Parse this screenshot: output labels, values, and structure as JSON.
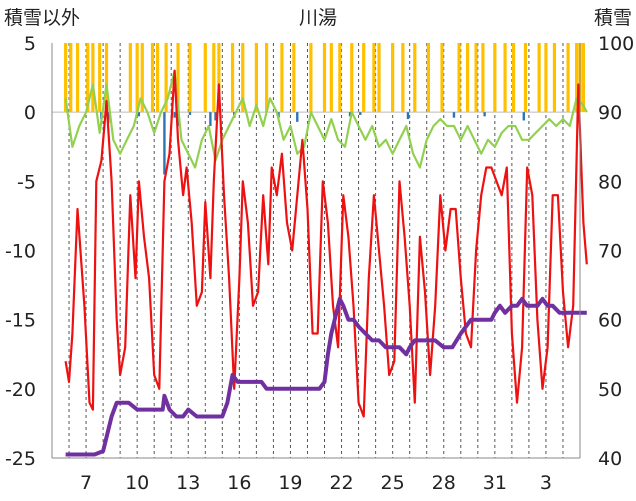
{
  "chart_data": {
    "type": "line",
    "title": "川湯",
    "ylabel_left": "積雪以外",
    "ylabel_right": "積雪",
    "xlim": [
      5,
      36
    ],
    "ylim_left": [
      -25,
      5
    ],
    "ylim_right": [
      40,
      100
    ],
    "x_tick_labels": [
      "7",
      "10",
      "13",
      "16",
      "19",
      "22",
      "25",
      "28",
      "31",
      "3"
    ],
    "y_left_ticks": [
      5,
      0,
      -5,
      -10,
      -15,
      -20,
      -25
    ],
    "y_right_ticks": [
      100,
      90,
      80,
      70,
      60,
      50,
      40
    ],
    "grid": "vertical-dashed",
    "colors": {
      "temperature": "#ee1111",
      "sunshine": "#ffc000",
      "precipitation": "#2e75b6",
      "wind": "#92d050",
      "snow_depth": "#7030a0",
      "grid": "#555555",
      "axis": "#888888"
    },
    "series": [
      {
        "key": "temperature",
        "axis": "left",
        "points": [
          [
            5.8,
            -18
          ],
          [
            6.0,
            -19.5
          ],
          [
            6.2,
            -16
          ],
          [
            6.5,
            -7
          ],
          [
            6.9,
            -14
          ],
          [
            7.2,
            -21
          ],
          [
            7.4,
            -21.5
          ],
          [
            7.6,
            -5
          ],
          [
            7.9,
            -3.5
          ],
          [
            8.2,
            0.8
          ],
          [
            8.5,
            -5
          ],
          [
            8.8,
            -15
          ],
          [
            9.0,
            -19
          ],
          [
            9.3,
            -17
          ],
          [
            9.6,
            -6
          ],
          [
            9.9,
            -12
          ],
          [
            10.1,
            -5
          ],
          [
            10.4,
            -9
          ],
          [
            10.7,
            -12
          ],
          [
            11.0,
            -19
          ],
          [
            11.3,
            -20
          ],
          [
            11.6,
            -5
          ],
          [
            11.9,
            -3
          ],
          [
            12.2,
            3
          ],
          [
            12.4,
            -2
          ],
          [
            12.7,
            -6
          ],
          [
            12.9,
            -4
          ],
          [
            13.2,
            -8
          ],
          [
            13.5,
            -14
          ],
          [
            13.8,
            -13
          ],
          [
            14.0,
            -6.5
          ],
          [
            14.3,
            -12
          ],
          [
            14.5,
            -5
          ],
          [
            14.8,
            2
          ],
          [
            15.1,
            -6
          ],
          [
            15.4,
            -12
          ],
          [
            15.7,
            -20
          ],
          [
            16.0,
            -12
          ],
          [
            16.2,
            -5
          ],
          [
            16.5,
            -8
          ],
          [
            16.8,
            -14
          ],
          [
            17.1,
            -13
          ],
          [
            17.4,
            -6
          ],
          [
            17.7,
            -11
          ],
          [
            17.9,
            -4
          ],
          [
            18.2,
            -6
          ],
          [
            18.5,
            -3
          ],
          [
            18.8,
            -8
          ],
          [
            19.1,
            -10
          ],
          [
            19.4,
            -6
          ],
          [
            19.7,
            -2
          ],
          [
            20.0,
            -7
          ],
          [
            20.3,
            -16
          ],
          [
            20.6,
            -16
          ],
          [
            20.9,
            -5
          ],
          [
            21.2,
            -8
          ],
          [
            21.5,
            -14
          ],
          [
            21.8,
            -17
          ],
          [
            22.1,
            -6
          ],
          [
            22.4,
            -9
          ],
          [
            22.7,
            -14
          ],
          [
            23.0,
            -21
          ],
          [
            23.3,
            -22
          ],
          [
            23.6,
            -12
          ],
          [
            23.9,
            -6
          ],
          [
            24.2,
            -10
          ],
          [
            24.5,
            -14
          ],
          [
            24.8,
            -19
          ],
          [
            25.1,
            -18
          ],
          [
            25.4,
            -5
          ],
          [
            25.7,
            -9
          ],
          [
            26.0,
            -14
          ],
          [
            26.3,
            -21
          ],
          [
            26.6,
            -9
          ],
          [
            26.9,
            -13
          ],
          [
            27.2,
            -19
          ],
          [
            27.5,
            -14
          ],
          [
            27.8,
            -6
          ],
          [
            28.1,
            -10
          ],
          [
            28.4,
            -7
          ],
          [
            28.7,
            -7
          ],
          [
            29.0,
            -12
          ],
          [
            29.3,
            -16
          ],
          [
            29.6,
            -17
          ],
          [
            29.9,
            -10
          ],
          [
            30.2,
            -6
          ],
          [
            30.5,
            -4
          ],
          [
            30.8,
            -4
          ],
          [
            31.1,
            -5
          ],
          [
            31.4,
            -6
          ],
          [
            31.7,
            -4
          ],
          [
            32.0,
            -16
          ],
          [
            32.3,
            -21
          ],
          [
            32.6,
            -17
          ],
          [
            32.9,
            -4
          ],
          [
            33.2,
            -6
          ],
          [
            33.5,
            -15
          ],
          [
            33.8,
            -20
          ],
          [
            34.1,
            -17
          ],
          [
            34.4,
            -6
          ],
          [
            34.7,
            -6
          ],
          [
            35.0,
            -13
          ],
          [
            35.3,
            -17
          ],
          [
            35.6,
            -14
          ],
          [
            35.9,
            2
          ],
          [
            36.2,
            -8
          ],
          [
            36.4,
            -11
          ]
        ]
      },
      {
        "key": "wind",
        "axis": "left",
        "points": [
          [
            5.8,
            1
          ],
          [
            6.2,
            -2.5
          ],
          [
            6.6,
            -1
          ],
          [
            7.0,
            0
          ],
          [
            7.4,
            2
          ],
          [
            7.8,
            -1.5
          ],
          [
            8.2,
            2
          ],
          [
            8.6,
            -2
          ],
          [
            9.0,
            -3
          ],
          [
            9.4,
            -2
          ],
          [
            9.8,
            -1
          ],
          [
            10.2,
            1
          ],
          [
            10.6,
            0
          ],
          [
            11.0,
            -1.5
          ],
          [
            11.4,
            0
          ],
          [
            11.8,
            1
          ],
          [
            12.2,
            3
          ],
          [
            12.6,
            -2
          ],
          [
            13.0,
            -3
          ],
          [
            13.4,
            -4
          ],
          [
            13.8,
            -2
          ],
          [
            14.2,
            -1
          ],
          [
            14.6,
            -3.5
          ],
          [
            15.0,
            -2
          ],
          [
            15.4,
            -1
          ],
          [
            15.8,
            0
          ],
          [
            16.2,
            1
          ],
          [
            16.6,
            -1
          ],
          [
            17.0,
            0.5
          ],
          [
            17.4,
            -1
          ],
          [
            17.8,
            1
          ],
          [
            18.2,
            0
          ],
          [
            18.6,
            -2
          ],
          [
            19.0,
            -1
          ],
          [
            19.4,
            -3
          ],
          [
            19.8,
            -2.5
          ],
          [
            20.2,
            0
          ],
          [
            20.6,
            -1
          ],
          [
            21.0,
            -2
          ],
          [
            21.4,
            -0.5
          ],
          [
            21.8,
            -2
          ],
          [
            22.2,
            -2.5
          ],
          [
            22.6,
            0
          ],
          [
            23.0,
            -1
          ],
          [
            23.4,
            -2
          ],
          [
            23.8,
            -1
          ],
          [
            24.2,
            -2.5
          ],
          [
            24.6,
            -2
          ],
          [
            25.0,
            -3
          ],
          [
            25.4,
            -2
          ],
          [
            25.8,
            -1
          ],
          [
            26.2,
            -3
          ],
          [
            26.6,
            -4
          ],
          [
            27.0,
            -2
          ],
          [
            27.4,
            -1
          ],
          [
            27.8,
            -0.5
          ],
          [
            28.2,
            -1
          ],
          [
            28.6,
            -1
          ],
          [
            29.0,
            -2
          ],
          [
            29.4,
            -1
          ],
          [
            29.8,
            -2
          ],
          [
            30.2,
            -3
          ],
          [
            30.6,
            -2
          ],
          [
            31.0,
            -2.5
          ],
          [
            31.4,
            -1.5
          ],
          [
            31.8,
            -1
          ],
          [
            32.2,
            -1
          ],
          [
            32.6,
            -2
          ],
          [
            33.0,
            -2
          ],
          [
            33.4,
            -1.5
          ],
          [
            33.8,
            -1
          ],
          [
            34.2,
            -0.5
          ],
          [
            34.6,
            -1
          ],
          [
            35.0,
            -0.5
          ],
          [
            35.4,
            -1
          ],
          [
            35.8,
            1
          ],
          [
            36.2,
            0.5
          ],
          [
            36.4,
            0
          ]
        ]
      },
      {
        "key": "snow_depth",
        "axis": "right",
        "points": [
          [
            5.8,
            40.5
          ],
          [
            6.5,
            40.5
          ],
          [
            7.5,
            40.5
          ],
          [
            8.0,
            41
          ],
          [
            8.5,
            46
          ],
          [
            8.8,
            48
          ],
          [
            9.5,
            48
          ],
          [
            10.0,
            47
          ],
          [
            10.5,
            47
          ],
          [
            11.0,
            47
          ],
          [
            11.5,
            47
          ],
          [
            11.6,
            49
          ],
          [
            11.9,
            47
          ],
          [
            12.3,
            46
          ],
          [
            12.7,
            46
          ],
          [
            13.0,
            47
          ],
          [
            13.5,
            46
          ],
          [
            14.0,
            46
          ],
          [
            14.5,
            46
          ],
          [
            15.0,
            46
          ],
          [
            15.3,
            48
          ],
          [
            15.6,
            52
          ],
          [
            15.9,
            51
          ],
          [
            16.3,
            51
          ],
          [
            16.7,
            51
          ],
          [
            17.0,
            51
          ],
          [
            17.3,
            51
          ],
          [
            17.6,
            50
          ],
          [
            18.0,
            50
          ],
          [
            18.4,
            50
          ],
          [
            18.7,
            50
          ],
          [
            19.0,
            50
          ],
          [
            19.5,
            50
          ],
          [
            20.0,
            50
          ],
          [
            20.4,
            50
          ],
          [
            20.7,
            50
          ],
          [
            21.0,
            51
          ],
          [
            21.2,
            55
          ],
          [
            21.4,
            58
          ],
          [
            21.6,
            60
          ],
          [
            21.9,
            63
          ],
          [
            22.1,
            62
          ],
          [
            22.4,
            60
          ],
          [
            22.7,
            60
          ],
          [
            23.0,
            59
          ],
          [
            23.4,
            58
          ],
          [
            23.8,
            57
          ],
          [
            24.2,
            57
          ],
          [
            24.6,
            56
          ],
          [
            25.0,
            56
          ],
          [
            25.4,
            56
          ],
          [
            25.8,
            55
          ],
          [
            26.0,
            56
          ],
          [
            26.3,
            57
          ],
          [
            26.7,
            57
          ],
          [
            27.0,
            57
          ],
          [
            27.5,
            57
          ],
          [
            28.0,
            56
          ],
          [
            28.5,
            56
          ],
          [
            29.0,
            58
          ],
          [
            29.3,
            59
          ],
          [
            29.6,
            60
          ],
          [
            30.0,
            60
          ],
          [
            30.5,
            60
          ],
          [
            30.8,
            60
          ],
          [
            31.0,
            61
          ],
          [
            31.3,
            62
          ],
          [
            31.6,
            61
          ],
          [
            32.0,
            62
          ],
          [
            32.3,
            62
          ],
          [
            32.6,
            63
          ],
          [
            32.9,
            62
          ],
          [
            33.2,
            62
          ],
          [
            33.5,
            62
          ],
          [
            33.8,
            63
          ],
          [
            34.1,
            62
          ],
          [
            34.4,
            62
          ],
          [
            34.8,
            61
          ],
          [
            35.2,
            61
          ],
          [
            35.6,
            61
          ],
          [
            36.0,
            61
          ],
          [
            36.4,
            61
          ]
        ]
      }
    ],
    "sunshine_days": [
      5.8,
      6.1,
      6.5,
      7.1,
      7.4,
      7.8,
      8.2,
      9.6,
      10.0,
      10.3,
      10.9,
      11.2,
      11.7,
      12.4,
      13.1,
      14.0,
      14.5,
      14.8,
      15.6,
      16.2,
      17.0,
      17.6,
      18.5,
      19.2,
      20.2,
      21.0,
      21.4,
      21.9,
      22.6,
      23.3,
      23.9,
      24.2,
      25.0,
      25.6,
      26.3,
      27.1,
      27.9,
      28.9,
      29.4,
      29.9,
      30.3,
      31.0,
      31.6,
      32.1,
      32.8,
      33.6,
      34.0,
      34.5,
      35.3,
      35.8,
      36.0,
      36.2
    ],
    "precip_bars": [
      [
        7.9,
        -0.5
      ],
      [
        8.3,
        -0.8
      ],
      [
        10.1,
        -0.3
      ],
      [
        11.6,
        -4.5
      ],
      [
        12.2,
        -0.4
      ],
      [
        12.4,
        -1
      ],
      [
        13.1,
        -0.2
      ],
      [
        14.3,
        -1
      ],
      [
        14.6,
        -0.6
      ],
      [
        15.7,
        -0.4
      ],
      [
        18.3,
        -0.4
      ],
      [
        19.4,
        -0.7
      ],
      [
        22.5,
        -0.3
      ],
      [
        23.1,
        -0.2
      ],
      [
        25.9,
        -0.5
      ],
      [
        28.6,
        -0.4
      ],
      [
        30.4,
        -0.3
      ],
      [
        32.7,
        -0.6
      ]
    ]
  }
}
